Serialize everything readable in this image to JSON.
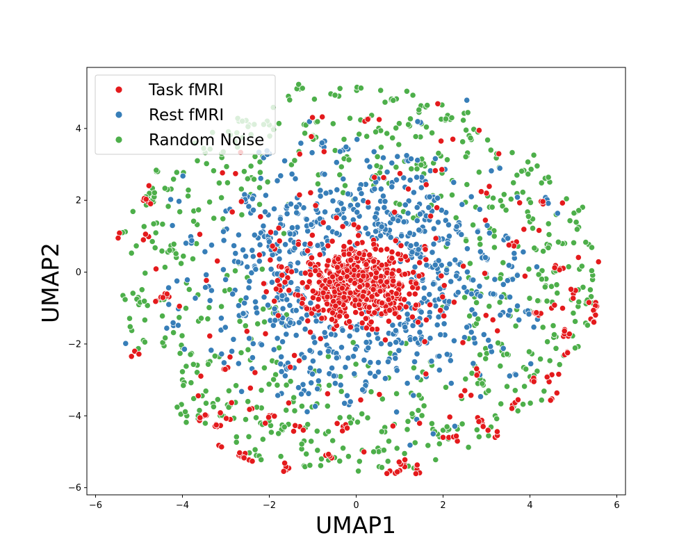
{
  "chart_data": {
    "type": "scatter",
    "title": "",
    "xlabel": "UMAP1",
    "ylabel": "UMAP2",
    "xlim": [
      -6.2,
      6.2
    ],
    "ylim": [
      -6.2,
      5.7
    ],
    "xticks": [
      -6,
      -4,
      -2,
      0,
      2,
      4,
      6
    ],
    "yticks": [
      -6,
      -4,
      -2,
      0,
      2,
      4
    ],
    "grid": false,
    "legend_position": "top-left",
    "series": [
      {
        "name": "Task fMRI",
        "color": "#e41a1c",
        "distribution": "dense core around (0.0, -0.3) with scattered outlying clusters",
        "approx_count": 750,
        "points": [
          [
            -5.5,
            1.1
          ],
          [
            -5.1,
            -2.2
          ],
          [
            -4.9,
            2.0
          ],
          [
            -4.9,
            0.9
          ],
          [
            -4.6,
            -0.8
          ],
          [
            -4.4,
            -0.6
          ],
          [
            -3.5,
            -4.0
          ],
          [
            -3.4,
            -5.3
          ],
          [
            -3.2,
            -4.3
          ],
          [
            -3.0,
            -2.7
          ],
          [
            -2.9,
            -4.1
          ],
          [
            -2.7,
            -5.1
          ],
          [
            -2.5,
            -5.3
          ],
          [
            -2.4,
            -3.8
          ],
          [
            -2.0,
            -4.0
          ],
          [
            -1.6,
            -5.5
          ],
          [
            -1.3,
            -4.3
          ],
          [
            -0.7,
            -5.1
          ],
          [
            -0.3,
            -4.3
          ],
          [
            0.2,
            4.2
          ],
          [
            0.9,
            -5.6
          ],
          [
            1.1,
            -5.3
          ],
          [
            1.4,
            -5.5
          ],
          [
            2.0,
            -4.6
          ],
          [
            2.3,
            -4.6
          ],
          [
            2.5,
            -3.3
          ],
          [
            2.8,
            -2.8
          ],
          [
            2.9,
            -4.2
          ],
          [
            3.2,
            -4.6
          ],
          [
            3.6,
            -3.7
          ],
          [
            4.1,
            -3.0
          ],
          [
            4.2,
            -1.2
          ],
          [
            4.4,
            -2.9
          ],
          [
            4.5,
            -1.0
          ],
          [
            4.6,
            -3.6
          ],
          [
            4.7,
            0.1
          ],
          [
            4.8,
            -1.6
          ],
          [
            4.8,
            -2.3
          ],
          [
            5.0,
            -0.6
          ],
          [
            5.5,
            -1.0
          ],
          [
            5.6,
            -1.2
          ],
          [
            5.6,
            -1.4
          ],
          [
            4.3,
            1.9
          ],
          [
            3.6,
            0.8
          ],
          [
            3.0,
            2.2
          ]
        ]
      },
      {
        "name": "Rest fMRI",
        "color": "#377eb8",
        "distribution": "ring around the core, roughly 1 to 3 units from (0, -0.2)",
        "approx_count": 750,
        "points": [
          [
            -3.0,
            1.7
          ],
          [
            -2.8,
            0.3
          ],
          [
            -2.6,
            -1.2
          ],
          [
            -2.5,
            2.1
          ],
          [
            -2.2,
            -2.0
          ],
          [
            -2.0,
            3.3
          ],
          [
            -1.8,
            0.6
          ],
          [
            -1.6,
            -2.7
          ],
          [
            -1.4,
            2.6
          ],
          [
            -1.2,
            -3.3
          ],
          [
            -0.8,
            3.6
          ],
          [
            -0.5,
            -2.9
          ],
          [
            -0.3,
            3.4
          ],
          [
            0.2,
            -3.2
          ],
          [
            0.5,
            2.6
          ],
          [
            0.9,
            -2.4
          ],
          [
            1.2,
            3.1
          ],
          [
            1.5,
            -1.8
          ],
          [
            1.8,
            2.0
          ],
          [
            2.1,
            -0.9
          ],
          [
            2.3,
            1.2
          ],
          [
            2.6,
            -1.5
          ],
          [
            2.9,
            0.4
          ],
          [
            3.1,
            -0.6
          ],
          [
            3.4,
            0.9
          ],
          [
            3.6,
            -0.2
          ],
          [
            3.9,
            -1.1
          ],
          [
            -3.4,
            -0.4
          ],
          [
            -3.8,
            0.9
          ],
          [
            -4.2,
            -1.5
          ],
          [
            4.4,
            2.0
          ],
          [
            -0.9,
            1.4
          ],
          [
            0.8,
            1.6
          ],
          [
            1.6,
            0.7
          ],
          [
            -1.5,
            -1.4
          ]
        ]
      },
      {
        "name": "Random Noise",
        "color": "#4daf4a",
        "distribution": "broad outer scatter out to about 5.5 units, with small clusters",
        "approx_count": 750,
        "points": [
          [
            -5.4,
            1.1
          ],
          [
            -5.0,
            -0.9
          ],
          [
            -4.9,
            -1.9
          ],
          [
            -4.8,
            2.1
          ],
          [
            -4.6,
            2.8
          ],
          [
            -4.2,
            0.6
          ],
          [
            -4.0,
            -2.1
          ],
          [
            -4.0,
            -3.0
          ],
          [
            -3.9,
            -4.0
          ],
          [
            -3.5,
            3.4
          ],
          [
            -3.4,
            -2.5
          ],
          [
            -3.1,
            3.3
          ],
          [
            -2.9,
            -3.7
          ],
          [
            -2.7,
            4.2
          ],
          [
            -2.3,
            -5.1
          ],
          [
            -2.0,
            4.1
          ],
          [
            -1.7,
            -4.4
          ],
          [
            -1.3,
            5.1
          ],
          [
            -1.2,
            -4.7
          ],
          [
            -0.8,
            -5.2
          ],
          [
            -0.4,
            4.9
          ],
          [
            -0.1,
            -4.1
          ],
          [
            0.5,
            -4.9
          ],
          [
            0.8,
            4.8
          ],
          [
            1.2,
            -5.4
          ],
          [
            1.6,
            4.6
          ],
          [
            2.0,
            -4.4
          ],
          [
            2.2,
            4.3
          ],
          [
            2.6,
            3.8
          ],
          [
            2.8,
            -3.1
          ],
          [
            3.1,
            3.4
          ],
          [
            3.2,
            -4.0
          ],
          [
            3.7,
            2.7
          ],
          [
            4.0,
            1.4
          ],
          [
            4.2,
            -0.8
          ],
          [
            4.4,
            0.7
          ],
          [
            4.8,
            0.8
          ],
          [
            5.1,
            1.7
          ],
          [
            5.3,
            -0.8
          ],
          [
            -4.4,
            -0.7
          ],
          [
            3.5,
            -2.3
          ],
          [
            -2.5,
            2.6
          ],
          [
            1.4,
            3.0
          ],
          [
            -1.0,
            3.8
          ],
          [
            4.6,
            -1.8
          ]
        ]
      }
    ]
  }
}
